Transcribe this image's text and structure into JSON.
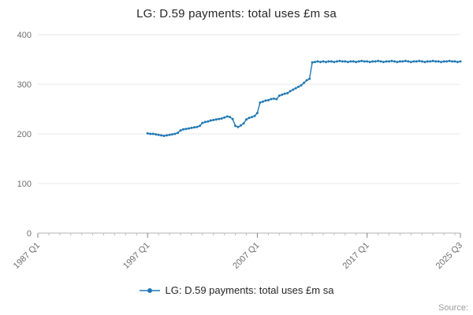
{
  "title": "LG: D.59 payments: total uses £m sa",
  "legend": {
    "label": "LG: D.59 payments: total uses £m sa"
  },
  "source": {
    "label": "Source:"
  },
  "chart_data": {
    "type": "line",
    "title": "LG: D.59 payments: total uses £m sa",
    "xlabel": "",
    "ylabel": "",
    "color": "#1f77b4",
    "grid": true,
    "legend_position": "bottom",
    "ylim": [
      0,
      400
    ],
    "yticks": [
      0,
      100,
      200,
      300,
      400
    ],
    "x_axis": {
      "start": {
        "year": 1987,
        "quarter": 1
      },
      "end": {
        "year": 2025,
        "quarter": 3
      },
      "tick_labels": [
        {
          "label": "1987 Q1",
          "year": 1987,
          "quarter": 1
        },
        {
          "label": "1997 Q1",
          "year": 1997,
          "quarter": 1
        },
        {
          "label": "2007 Q1",
          "year": 2007,
          "quarter": 1
        },
        {
          "label": "2017 Q1",
          "year": 2017,
          "quarter": 1
        },
        {
          "label": "2025 Q3",
          "year": 2025,
          "quarter": 3
        }
      ]
    },
    "series": [
      {
        "name": "LG: D.59 payments: total uses £m sa",
        "frequency": "quarterly",
        "start": {
          "year": 1997,
          "quarter": 1
        },
        "values": [
          201,
          200,
          200,
          199,
          198,
          197,
          196,
          197,
          198,
          199,
          200,
          202,
          207,
          209,
          210,
          211,
          212,
          213,
          214,
          216,
          222,
          224,
          225,
          227,
          228,
          229,
          230,
          231,
          233,
          235,
          234,
          230,
          216,
          214,
          217,
          221,
          229,
          232,
          234,
          236,
          242,
          263,
          265,
          267,
          268,
          270,
          271,
          270,
          277,
          279,
          281,
          282,
          286,
          289,
          292,
          295,
          298,
          303,
          308,
          311,
          344,
          345,
          346,
          345,
          346,
          345,
          346,
          346,
          345,
          346,
          347,
          346,
          346,
          345,
          346,
          346,
          345,
          346,
          347,
          346,
          346,
          345,
          346,
          346,
          347,
          346,
          345,
          346,
          346,
          347,
          346,
          345,
          346,
          346,
          347,
          346,
          345,
          346,
          346,
          347,
          346,
          345,
          346,
          346,
          347,
          346,
          346,
          345,
          346,
          346,
          347,
          346,
          346,
          345,
          346
        ]
      }
    ]
  }
}
